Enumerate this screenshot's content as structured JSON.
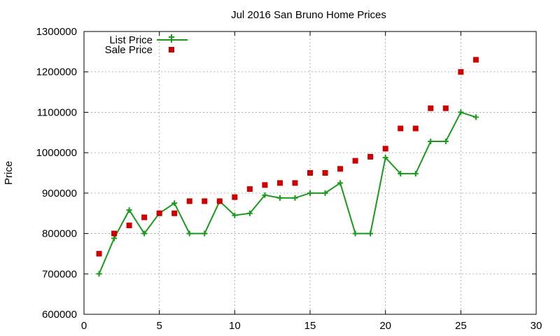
{
  "chart_data": {
    "type": "line",
    "title": "Jul 2016 San Bruno Home Prices",
    "xlabel": "",
    "ylabel": "Price",
    "xlim": [
      0,
      30
    ],
    "ylim": [
      600000,
      1300000
    ],
    "xticks": [
      0,
      5,
      10,
      15,
      20,
      25,
      30
    ],
    "yticks": [
      600000,
      700000,
      800000,
      900000,
      1000000,
      1100000,
      1200000,
      1300000
    ],
    "grid": true,
    "legend_position": "top-left",
    "series": [
      {
        "name": "List Price",
        "style": "line-with-plus-markers",
        "color": "#1a9a1a",
        "x": [
          1,
          2,
          3,
          4,
          5,
          6,
          7,
          8,
          9,
          10,
          11,
          12,
          13,
          14,
          15,
          16,
          17,
          18,
          19,
          20,
          21,
          22,
          23,
          24,
          25,
          26
        ],
        "y": [
          700000,
          788000,
          858000,
          800000,
          850000,
          875000,
          800000,
          800000,
          880000,
          845000,
          850000,
          895000,
          888000,
          888000,
          900000,
          900000,
          925000,
          800000,
          800000,
          988000,
          948000,
          948000,
          1028000,
          1028000,
          1100000,
          1088000
        ]
      },
      {
        "name": "Sale Price",
        "style": "square-markers",
        "color": "#cc0000",
        "x": [
          1,
          2,
          3,
          4,
          5,
          6,
          7,
          8,
          9,
          10,
          11,
          12,
          13,
          14,
          15,
          16,
          17,
          18,
          19,
          20,
          21,
          22,
          23,
          24,
          25,
          26
        ],
        "y": [
          750000,
          800000,
          820000,
          840000,
          850000,
          850000,
          880000,
          880000,
          880000,
          890000,
          910000,
          920000,
          925000,
          925000,
          950000,
          950000,
          960000,
          980000,
          990000,
          1010000,
          1060000,
          1060000,
          1110000,
          1110000,
          1200000,
          1230000
        ]
      }
    ]
  }
}
